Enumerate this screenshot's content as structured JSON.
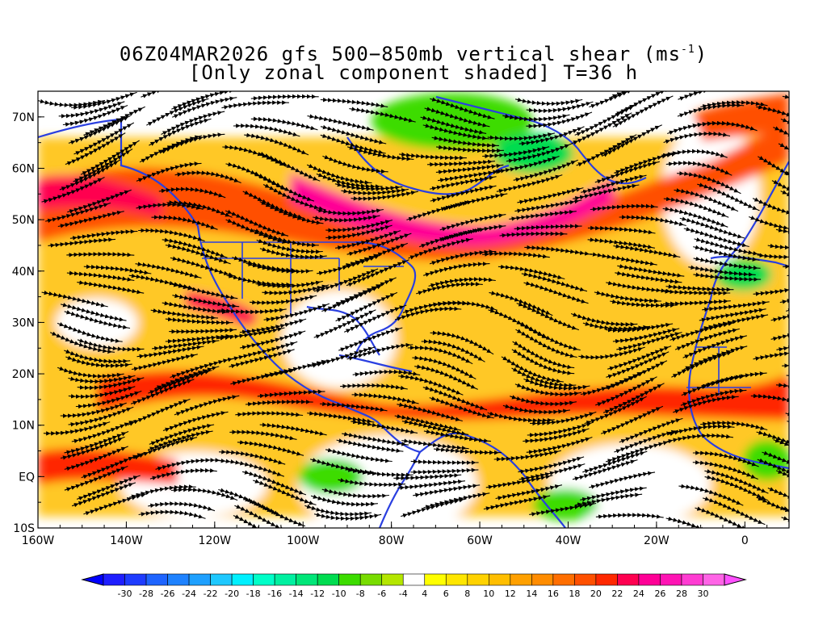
{
  "title": {
    "line1_main": "06Z04MAR2026 gfs 500−850mb vertical shear (ms",
    "line1_sup": "-1",
    "line1_end": ")",
    "line2": "[Only zonal component shaded] T=36 h"
  },
  "axes": {
    "lon_labels": [
      "160W",
      "140W",
      "120W",
      "100W",
      "80W",
      "60W",
      "40W",
      "20W",
      "0"
    ],
    "lon_values": [
      -160,
      -140,
      -120,
      -100,
      -80,
      -60,
      -40,
      -20,
      0
    ],
    "lat_labels": [
      "70N",
      "60N",
      "50N",
      "40N",
      "30N",
      "20N",
      "10N",
      "EQ",
      "10S"
    ],
    "lat_values": [
      70,
      60,
      50,
      40,
      30,
      20,
      10,
      0,
      -10
    ],
    "lon_range": [
      -160,
      10
    ],
    "lat_range": [
      -10,
      75
    ]
  },
  "colorbar": {
    "labels": [
      "-30",
      "-28",
      "-26",
      "-24",
      "-22",
      "-20",
      "-18",
      "-16",
      "-14",
      "-12",
      "-10",
      "-8",
      "-6",
      "-4",
      "4",
      "6",
      "8",
      "10",
      "12",
      "14",
      "16",
      "18",
      "20",
      "22",
      "24",
      "26",
      "28",
      "30"
    ],
    "colors": [
      "#1e1eff",
      "#1e3cff",
      "#1e64ff",
      "#1e82ff",
      "#1ea0ff",
      "#1ec8ff",
      "#00f0ff",
      "#00ffc8",
      "#00f0a0",
      "#00e678",
      "#00dc50",
      "#3cdc00",
      "#78dc00",
      "#b4e600",
      "#ffffff",
      "#ffff00",
      "#ffe600",
      "#ffd200",
      "#ffbe00",
      "#ffa000",
      "#ff8c00",
      "#ff6e00",
      "#ff5000",
      "#ff2800",
      "#ff0050",
      "#ff0096",
      "#ff14b4",
      "#ff3cd2",
      "#ff64e6"
    ],
    "under_color": "#0000ff",
    "over_color": "#ff50ff"
  },
  "map": {
    "land_outline_color": "#2a3fe0",
    "streamline_color": "#000000"
  }
}
